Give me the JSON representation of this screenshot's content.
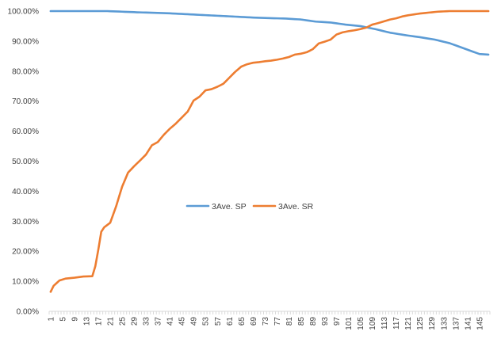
{
  "chart_data": {
    "type": "line",
    "title": "",
    "xlabel": "",
    "ylabel": "",
    "ylim": [
      0,
      100
    ],
    "yticks": [
      "0.00%",
      "10.00%",
      "20.00%",
      "30.00%",
      "40.00%",
      "50.00%",
      "60.00%",
      "70.00%",
      "80.00%",
      "90.00%",
      "100.00%"
    ],
    "x_count": 148,
    "x_ticks": [
      "1",
      "5",
      "9",
      "13",
      "17",
      "21",
      "25",
      "29",
      "33",
      "37",
      "41",
      "45",
      "49",
      "53",
      "57",
      "61",
      "65",
      "69",
      "73",
      "77",
      "81",
      "85",
      "89",
      "93",
      "97",
      "101",
      "105",
      "109",
      "113",
      "117",
      "121",
      "125",
      "129",
      "133",
      "137",
      "141",
      "145"
    ],
    "grid": false,
    "legend_position": "center",
    "series": [
      {
        "name": "3Ave. SP",
        "color": "#5b9bd5",
        "points": [
          [
            1,
            100
          ],
          [
            20,
            100
          ],
          [
            30,
            99.6
          ],
          [
            40,
            99.3
          ],
          [
            50,
            98.8
          ],
          [
            60,
            98.3
          ],
          [
            70,
            97.8
          ],
          [
            80,
            97.5
          ],
          [
            85,
            97.2
          ],
          [
            90,
            96.5
          ],
          [
            95,
            96.2
          ],
          [
            100,
            95.5
          ],
          [
            105,
            95
          ],
          [
            110,
            94
          ],
          [
            115,
            92.8
          ],
          [
            120,
            92
          ],
          [
            125,
            91.3
          ],
          [
            130,
            90.5
          ],
          [
            135,
            89.3
          ],
          [
            140,
            87.5
          ],
          [
            145,
            85.7
          ],
          [
            148,
            85.5
          ]
        ]
      },
      {
        "name": "3Ave. SR",
        "color": "#ed7d31",
        "points": [
          [
            1,
            6.5
          ],
          [
            2,
            8.5
          ],
          [
            4,
            10.3
          ],
          [
            6,
            10.9
          ],
          [
            9,
            11.2
          ],
          [
            12,
            11.6
          ],
          [
            15,
            11.7
          ],
          [
            16,
            15
          ],
          [
            17,
            20.5
          ],
          [
            18,
            26.5
          ],
          [
            19,
            28
          ],
          [
            21,
            29.5
          ],
          [
            23,
            35
          ],
          [
            25,
            41.5
          ],
          [
            27,
            46.2
          ],
          [
            29,
            48.3
          ],
          [
            31,
            50.2
          ],
          [
            33,
            52.2
          ],
          [
            35,
            55.3
          ],
          [
            37,
            56.4
          ],
          [
            39,
            58.8
          ],
          [
            41,
            60.8
          ],
          [
            43,
            62.5
          ],
          [
            45,
            64.5
          ],
          [
            47,
            66.5
          ],
          [
            49,
            70.2
          ],
          [
            51,
            71.5
          ],
          [
            53,
            73.6
          ],
          [
            55,
            74
          ],
          [
            57,
            74.8
          ],
          [
            59,
            75.8
          ],
          [
            61,
            77.8
          ],
          [
            63,
            79.8
          ],
          [
            65,
            81.5
          ],
          [
            67,
            82.3
          ],
          [
            69,
            82.8
          ],
          [
            71,
            83
          ],
          [
            73,
            83.3
          ],
          [
            75,
            83.5
          ],
          [
            77,
            83.8
          ],
          [
            79,
            84.2
          ],
          [
            81,
            84.7
          ],
          [
            83,
            85.5
          ],
          [
            85,
            85.8
          ],
          [
            87,
            86.3
          ],
          [
            89,
            87.3
          ],
          [
            91,
            89.2
          ],
          [
            93,
            89.8
          ],
          [
            95,
            90.5
          ],
          [
            97,
            92.2
          ],
          [
            99,
            92.9
          ],
          [
            101,
            93.3
          ],
          [
            103,
            93.6
          ],
          [
            105,
            94
          ],
          [
            107,
            94.5
          ],
          [
            109,
            95.5
          ],
          [
            111,
            96
          ],
          [
            113,
            96.6
          ],
          [
            115,
            97.2
          ],
          [
            117,
            97.6
          ],
          [
            119,
            98.2
          ],
          [
            121,
            98.6
          ],
          [
            123,
            98.9
          ],
          [
            125,
            99.2
          ],
          [
            127,
            99.4
          ],
          [
            129,
            99.6
          ],
          [
            131,
            99.8
          ],
          [
            133,
            99.9
          ],
          [
            135,
            100
          ],
          [
            148,
            100
          ]
        ]
      }
    ]
  }
}
